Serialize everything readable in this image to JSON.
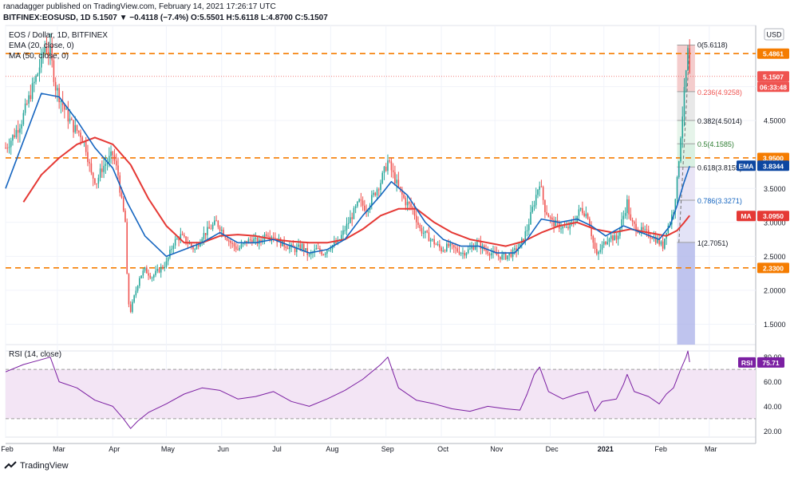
{
  "header": {
    "publish_line": "ranadagger published on TradingView.com, February 14, 2021 17:26:17 UTC",
    "symbol_line": "BITFINEX:EOSUSD, 1D 5.1507 ▼ −0.4118 (−7.4%) O:5.5501 H:5.6118 L:4.8700 C:5.1507"
  },
  "legend": {
    "title": "EOS / Dollar, 1D, BITFINEX",
    "ema": "EMA (20, close, 0)",
    "ma": "MA (50, close, 0)"
  },
  "currency_badge": "USD",
  "footer": {
    "brand": "TradingView"
  },
  "colors": {
    "up": "#26a69a",
    "down": "#ef5350",
    "ema": "#1565c0",
    "ma": "#e53935",
    "orange": "#f57c00",
    "rsi": "#7b1fa2",
    "rsi_band": "#f3e5f5"
  },
  "price_axis_ticks": [
    "5.0000",
    "4.5000",
    "3.5000",
    "3.0000",
    "2.5000",
    "2.0000",
    "1.5000"
  ],
  "price_badges": [
    {
      "label": "5.4861",
      "kind": "orange"
    },
    {
      "label": "5.1507",
      "kind": "red"
    },
    {
      "label": "06:33:48",
      "kind": "red"
    },
    {
      "label": "3.9500",
      "kind": "orange"
    },
    {
      "label": "EMA",
      "kind": "tag-ema"
    },
    {
      "label": "3.8344",
      "kind": "ema"
    },
    {
      "label": "MA",
      "kind": "tag-ma"
    },
    {
      "label": "3.0950",
      "kind": "ma"
    },
    {
      "label": "2.3300",
      "kind": "orange"
    }
  ],
  "fib_labels": [
    {
      "label": "0(5.6118)",
      "color": "#131722"
    },
    {
      "label": "0.236(4.9258)",
      "color": "#ef5350"
    },
    {
      "label": "0.382(4.5014)",
      "color": "#131722"
    },
    {
      "label": "0.5(4.1585)",
      "color": "#2e7d32"
    },
    {
      "label": "0.618(3.8155)",
      "color": "#131722"
    },
    {
      "label": "0.786(3.3271)",
      "color": "#1565c0"
    },
    {
      "label": "1(2.7051)",
      "color": "#131722"
    }
  ],
  "rsi": {
    "title": "RSI (14, close)",
    "tag": "RSI",
    "value_label": "75.71",
    "ticks": [
      "80.00",
      "60.00",
      "40.00",
      "20.00"
    ]
  },
  "chart_data": {
    "type": "candlestick",
    "title": "EOS / Dollar, 1D, BITFINEX",
    "x_tick_labels": [
      "Feb",
      "Mar",
      "Apr",
      "May",
      "Jun",
      "Jul",
      "Aug",
      "Sep",
      "Oct",
      "Nov",
      "Dec",
      "2021",
      "Feb",
      "Mar"
    ],
    "y_range": [
      1.2,
      5.9
    ],
    "horizontal_levels": [
      5.4861,
      3.95,
      2.33
    ],
    "last_price": 5.1507,
    "fib_retracement": {
      "high": 5.6118,
      "low": 2.7051,
      "levels": [
        0,
        0.236,
        0.382,
        0.5,
        0.618,
        0.786,
        1
      ]
    },
    "close_series": {
      "name": "EOSUSD",
      "points": [
        [
          0,
          4.1
        ],
        [
          5,
          4.3
        ],
        [
          9,
          4.5
        ],
        [
          14,
          4.9
        ],
        [
          18,
          5.2
        ],
        [
          22,
          5.6
        ],
        [
          25,
          5.5
        ],
        [
          28,
          5.0
        ],
        [
          31,
          4.8
        ],
        [
          34,
          4.6
        ],
        [
          38,
          4.4
        ],
        [
          42,
          4.3
        ],
        [
          45,
          4.1
        ],
        [
          48,
          3.7
        ],
        [
          51,
          3.6
        ],
        [
          54,
          3.8
        ],
        [
          57,
          3.9
        ],
        [
          60,
          4.0
        ],
        [
          63,
          3.7
        ],
        [
          65,
          3.3
        ],
        [
          67,
          3.0
        ],
        [
          68,
          2.2
        ],
        [
          69,
          1.8
        ],
        [
          70,
          1.7
        ],
        [
          72,
          1.9
        ],
        [
          75,
          2.2
        ],
        [
          78,
          2.3
        ],
        [
          82,
          2.2
        ],
        [
          86,
          2.3
        ],
        [
          90,
          2.4
        ],
        [
          94,
          2.7
        ],
        [
          98,
          2.8
        ],
        [
          102,
          2.7
        ],
        [
          106,
          2.6
        ],
        [
          110,
          2.8
        ],
        [
          114,
          2.9
        ],
        [
          118,
          3.0
        ],
        [
          122,
          2.85
        ],
        [
          126,
          2.7
        ],
        [
          130,
          2.6
        ],
        [
          134,
          2.7
        ],
        [
          138,
          2.75
        ],
        [
          142,
          2.7
        ],
        [
          146,
          2.85
        ],
        [
          150,
          2.8
        ],
        [
          154,
          2.7
        ],
        [
          158,
          2.65
        ],
        [
          162,
          2.6
        ],
        [
          166,
          2.65
        ],
        [
          170,
          2.5
        ],
        [
          174,
          2.6
        ],
        [
          178,
          2.55
        ],
        [
          182,
          2.65
        ],
        [
          186,
          2.7
        ],
        [
          190,
          2.9
        ],
        [
          194,
          3.1
        ],
        [
          198,
          3.3
        ],
        [
          202,
          3.2
        ],
        [
          206,
          3.4
        ],
        [
          210,
          3.6
        ],
        [
          214,
          3.9
        ],
        [
          217,
          3.7
        ],
        [
          220,
          3.5
        ],
        [
          224,
          3.3
        ],
        [
          228,
          3.2
        ],
        [
          232,
          2.9
        ],
        [
          236,
          2.8
        ],
        [
          240,
          2.7
        ],
        [
          244,
          2.6
        ],
        [
          248,
          2.65
        ],
        [
          252,
          2.6
        ],
        [
          256,
          2.55
        ],
        [
          260,
          2.6
        ],
        [
          264,
          2.7
        ],
        [
          268,
          2.6
        ],
        [
          272,
          2.55
        ],
        [
          276,
          2.5
        ],
        [
          280,
          2.5
        ],
        [
          284,
          2.55
        ],
        [
          288,
          2.65
        ],
        [
          292,
          2.9
        ],
        [
          296,
          3.3
        ],
        [
          299,
          3.6
        ],
        [
          302,
          3.2
        ],
        [
          306,
          3.0
        ],
        [
          310,
          2.95
        ],
        [
          314,
          2.9
        ],
        [
          318,
          3.0
        ],
        [
          322,
          3.2
        ],
        [
          326,
          3.1
        ],
        [
          329,
          2.7
        ],
        [
          331,
          2.5
        ],
        [
          334,
          2.65
        ],
        [
          338,
          2.8
        ],
        [
          342,
          2.75
        ],
        [
          346,
          3.1
        ],
        [
          348,
          3.3
        ],
        [
          350,
          3.0
        ],
        [
          354,
          2.9
        ],
        [
          358,
          2.85
        ],
        [
          362,
          2.8
        ],
        [
          366,
          2.7
        ],
        [
          368,
          2.65
        ],
        [
          370,
          2.9
        ],
        [
          372,
          3.0
        ],
        [
          374,
          3.2
        ],
        [
          376,
          3.6
        ],
        [
          378,
          4.3
        ],
        [
          380,
          4.9
        ],
        [
          382,
          5.5
        ],
        [
          383,
          5.15
        ]
      ]
    },
    "ema20_series": {
      "name": "EMA (20, close, 0)",
      "points": [
        [
          0,
          3.5
        ],
        [
          10,
          4.2
        ],
        [
          20,
          4.9
        ],
        [
          30,
          4.85
        ],
        [
          40,
          4.5
        ],
        [
          50,
          4.1
        ],
        [
          60,
          3.8
        ],
        [
          68,
          3.3
        ],
        [
          78,
          2.8
        ],
        [
          90,
          2.5
        ],
        [
          100,
          2.6
        ],
        [
          110,
          2.7
        ],
        [
          120,
          2.85
        ],
        [
          130,
          2.7
        ],
        [
          140,
          2.7
        ],
        [
          150,
          2.75
        ],
        [
          160,
          2.65
        ],
        [
          170,
          2.55
        ],
        [
          180,
          2.6
        ],
        [
          190,
          2.75
        ],
        [
          200,
          3.1
        ],
        [
          210,
          3.4
        ],
        [
          216,
          3.6
        ],
        [
          225,
          3.4
        ],
        [
          235,
          3.0
        ],
        [
          245,
          2.75
        ],
        [
          255,
          2.65
        ],
        [
          265,
          2.65
        ],
        [
          275,
          2.55
        ],
        [
          285,
          2.55
        ],
        [
          292,
          2.75
        ],
        [
          300,
          3.05
        ],
        [
          310,
          3.0
        ],
        [
          320,
          3.05
        ],
        [
          328,
          2.95
        ],
        [
          336,
          2.8
        ],
        [
          346,
          2.95
        ],
        [
          356,
          2.85
        ],
        [
          366,
          2.75
        ],
        [
          372,
          2.95
        ],
        [
          376,
          3.25
        ],
        [
          380,
          3.6
        ],
        [
          383,
          3.83
        ]
      ]
    },
    "ma50_series": {
      "name": "MA (50, close, 0)",
      "points": [
        [
          10,
          3.3
        ],
        [
          20,
          3.7
        ],
        [
          30,
          3.95
        ],
        [
          40,
          4.15
        ],
        [
          50,
          4.25
        ],
        [
          60,
          4.15
        ],
        [
          70,
          3.85
        ],
        [
          80,
          3.35
        ],
        [
          90,
          2.95
        ],
        [
          100,
          2.7
        ],
        [
          110,
          2.7
        ],
        [
          120,
          2.8
        ],
        [
          130,
          2.82
        ],
        [
          140,
          2.8
        ],
        [
          150,
          2.75
        ],
        [
          160,
          2.72
        ],
        [
          170,
          2.7
        ],
        [
          180,
          2.7
        ],
        [
          190,
          2.75
        ],
        [
          200,
          2.9
        ],
        [
          210,
          3.1
        ],
        [
          220,
          3.2
        ],
        [
          230,
          3.2
        ],
        [
          240,
          3.0
        ],
        [
          250,
          2.85
        ],
        [
          260,
          2.75
        ],
        [
          270,
          2.7
        ],
        [
          280,
          2.65
        ],
        [
          290,
          2.72
        ],
        [
          300,
          2.85
        ],
        [
          310,
          2.95
        ],
        [
          320,
          3.0
        ],
        [
          330,
          2.9
        ],
        [
          340,
          2.85
        ],
        [
          350,
          2.9
        ],
        [
          360,
          2.85
        ],
        [
          370,
          2.8
        ],
        [
          376,
          2.88
        ],
        [
          380,
          3.0
        ],
        [
          383,
          3.1
        ]
      ]
    },
    "rsi_series": {
      "name": "RSI (14, close)",
      "y_range": [
        15,
        85
      ],
      "bands": [
        30,
        70
      ],
      "points": [
        [
          0,
          68
        ],
        [
          10,
          74
        ],
        [
          20,
          78
        ],
        [
          25,
          80
        ],
        [
          30,
          60
        ],
        [
          40,
          55
        ],
        [
          50,
          45
        ],
        [
          60,
          40
        ],
        [
          66,
          30
        ],
        [
          70,
          22
        ],
        [
          74,
          28
        ],
        [
          80,
          35
        ],
        [
          90,
          42
        ],
        [
          100,
          50
        ],
        [
          110,
          55
        ],
        [
          120,
          53
        ],
        [
          130,
          46
        ],
        [
          140,
          48
        ],
        [
          150,
          52
        ],
        [
          160,
          44
        ],
        [
          170,
          40
        ],
        [
          180,
          46
        ],
        [
          190,
          53
        ],
        [
          200,
          62
        ],
        [
          210,
          74
        ],
        [
          214,
          80
        ],
        [
          220,
          55
        ],
        [
          230,
          45
        ],
        [
          240,
          42
        ],
        [
          250,
          38
        ],
        [
          260,
          36
        ],
        [
          270,
          40
        ],
        [
          280,
          38
        ],
        [
          288,
          37
        ],
        [
          292,
          50
        ],
        [
          296,
          66
        ],
        [
          299,
          72
        ],
        [
          304,
          52
        ],
        [
          312,
          46
        ],
        [
          320,
          50
        ],
        [
          326,
          52
        ],
        [
          330,
          36
        ],
        [
          334,
          44
        ],
        [
          342,
          46
        ],
        [
          346,
          58
        ],
        [
          348,
          66
        ],
        [
          352,
          52
        ],
        [
          360,
          48
        ],
        [
          366,
          42
        ],
        [
          370,
          50
        ],
        [
          374,
          55
        ],
        [
          378,
          70
        ],
        [
          381,
          80
        ],
        [
          382,
          85
        ],
        [
          383,
          76
        ]
      ]
    }
  }
}
